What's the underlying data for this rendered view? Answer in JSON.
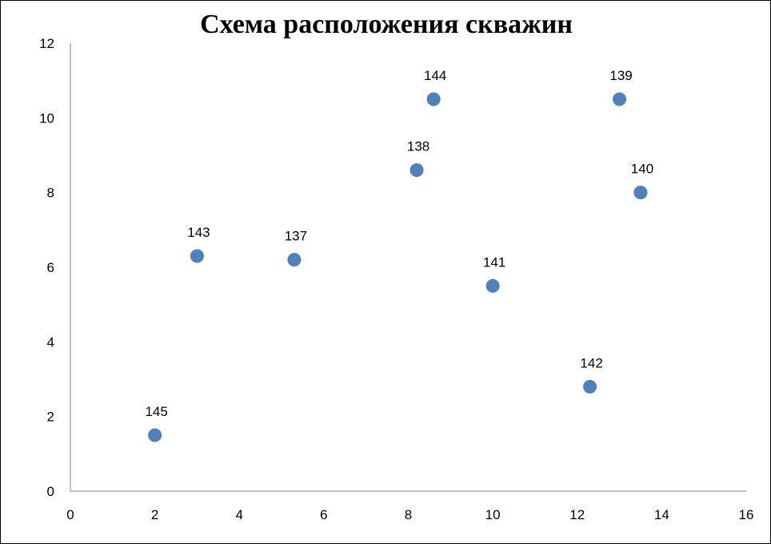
{
  "chart_data": {
    "type": "scatter",
    "title": "Схема расположения скважин",
    "xlabel": "",
    "ylabel": "",
    "xlim": [
      0,
      16
    ],
    "ylim": [
      0,
      12
    ],
    "x_ticks": [
      0,
      2,
      4,
      6,
      8,
      10,
      12,
      14,
      16
    ],
    "y_ticks": [
      0,
      2,
      4,
      6,
      8,
      10,
      12
    ],
    "grid": false,
    "legend": "none",
    "marker_color": "#4F81BD",
    "points": [
      {
        "label": "145",
        "x": 2.0,
        "y": 1.5
      },
      {
        "label": "143",
        "x": 3.0,
        "y": 6.3
      },
      {
        "label": "137",
        "x": 5.3,
        "y": 6.2
      },
      {
        "label": "138",
        "x": 8.2,
        "y": 8.6
      },
      {
        "label": "144",
        "x": 8.6,
        "y": 10.5
      },
      {
        "label": "141",
        "x": 10.0,
        "y": 5.5
      },
      {
        "label": "142",
        "x": 12.3,
        "y": 2.8
      },
      {
        "label": "139",
        "x": 13.0,
        "y": 10.5
      },
      {
        "label": "140",
        "x": 13.5,
        "y": 8.0
      }
    ]
  }
}
